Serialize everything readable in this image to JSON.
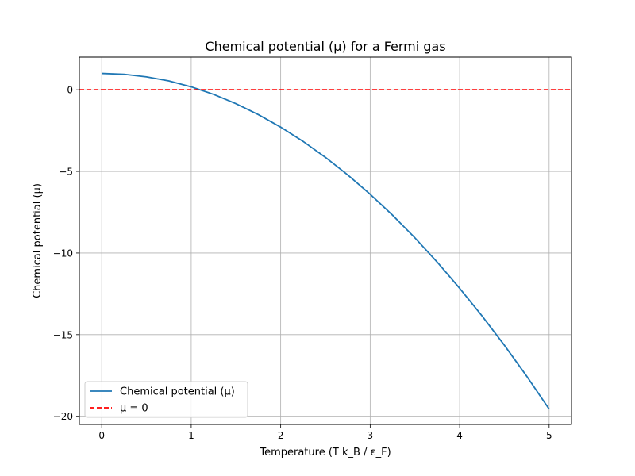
{
  "chart_data": {
    "type": "line",
    "title": "Chemical potential (μ) for a Fermi gas",
    "xlabel": "Temperature (T k_B / ε_F)",
    "ylabel": "Chemical potential (μ)",
    "xlim": [
      -0.25,
      5.25
    ],
    "ylim": [
      -20.5,
      2.0
    ],
    "xticks": [
      0,
      1,
      2,
      3,
      4,
      5
    ],
    "xtick_labels": [
      "0",
      "1",
      "2",
      "3",
      "4",
      "5"
    ],
    "yticks": [
      0,
      -5,
      -10,
      -15,
      -20
    ],
    "ytick_labels": [
      "0",
      "−5",
      "−10",
      "−15",
      "−20"
    ],
    "grid": true,
    "legend_position": "lower-left",
    "series": [
      {
        "name": "Chemical potential (μ)",
        "style": "solid",
        "color": "#1f77b4",
        "x": [
          0,
          0.25,
          0.5,
          0.75,
          1.0,
          1.25,
          1.5,
          1.75,
          2.0,
          2.25,
          2.5,
          2.75,
          3.0,
          3.25,
          3.5,
          3.75,
          4.0,
          4.25,
          4.5,
          4.75,
          5.0
        ],
        "y": [
          1.0,
          0.95,
          0.79,
          0.54,
          0.18,
          -0.28,
          -0.85,
          -1.52,
          -2.29,
          -3.16,
          -4.14,
          -5.22,
          -6.4,
          -7.68,
          -9.07,
          -10.56,
          -12.16,
          -13.85,
          -15.65,
          -17.55,
          -19.56
        ]
      },
      {
        "name": "μ = 0",
        "style": "dashed",
        "color": "#ff0000",
        "y": [
          0
        ]
      }
    ]
  }
}
